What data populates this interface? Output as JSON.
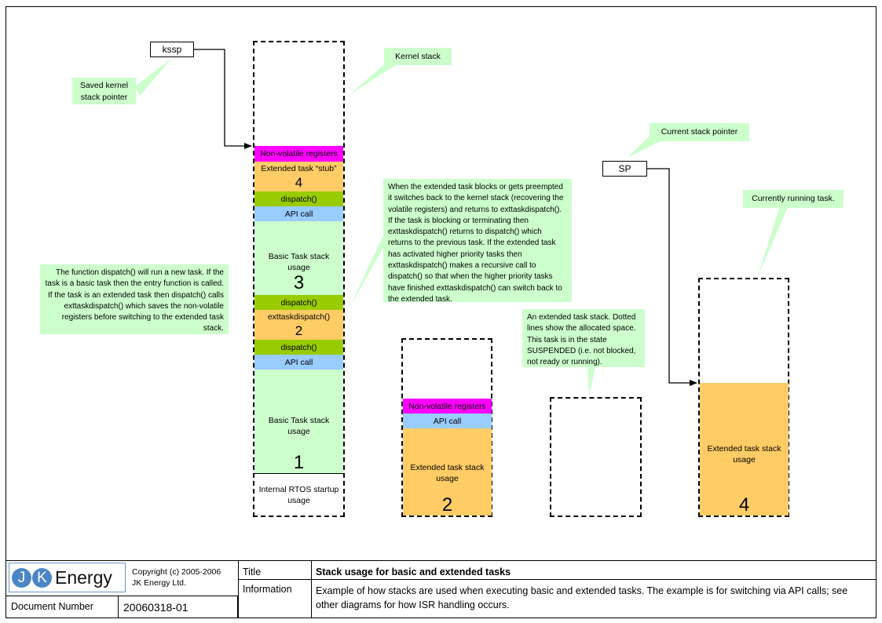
{
  "pointers": {
    "kssp": "kssp",
    "sp": "SP"
  },
  "notes": {
    "saved_kernel_sp": "Saved kernel\nstack pointer",
    "kernel_stack": "Kernel stack",
    "current_sp": "Current stack pointer",
    "currently_running": "Currently running task.",
    "dispatch_note": "The function dispatch() will run a new task. If the task is a basic task then the entry function is called. If the task is an extended task then dispatch() calls exttaskdispatch() which saves the non-volatile registers before switching to the extended task stack.",
    "exttask_note": "When the extended task blocks or gets preempted it switches back to the kernel stack (recovering the volatile registers) and returns to exttaskdispatch(). If the task is blocking or terminating then exttaskdispatch() returns to dispatch() which returns to the previous task. If the extended task has activated higher priority tasks  then exttaskdispatch() makes a recursive call to dispatch() so that when the higher priority tasks have finished exttaskdispatch() can switch back to the extended task.",
    "suspended_note": "An extended task stack. Dotted lines show the allocated space. This task is in the state SUSPENDED (i.e. not blocked, not ready or running)."
  },
  "kernel_stack": {
    "nonvol": "Non-volatile registers",
    "stub_label": "Extended task “stub”",
    "stub_num": "4",
    "dispatch1": "dispatch()",
    "api1": "API call",
    "basic3_label": "Basic Task stack usage",
    "basic3_num": "3",
    "dispatch2": "dispatch()",
    "exttaskdispatch": "exttaskdispatch()",
    "ext_num": "2",
    "dispatch3": "dispatch()",
    "api2": "API call",
    "basic1_label": "Basic Task stack usage",
    "basic1_num": "1",
    "startup": "Internal RTOS startup usage"
  },
  "stack2": {
    "nonvol": "Non-volatile registers",
    "api": "API call",
    "label": "Extended task stack usage",
    "num": "2"
  },
  "stack4": {
    "label": "Extended task stack usage",
    "num": "4"
  },
  "footer": {
    "logo_j": "J",
    "logo_k": "K",
    "logo_text": "Energy",
    "copyright_line1": "Copyright (c) 2005-2006",
    "copyright_line2": "JK Energy Ltd.",
    "docnum_label": "Document Number",
    "docnum_value": "20060318-01",
    "title_label": "Title",
    "title_value": "Stack usage for basic and extended tasks",
    "info_label": "Information",
    "info_value": "Example of how stacks are used when executing basic and extended tasks. The example is for switching via API calls; see other diagrams for how ISR handling occurs."
  },
  "colors": {
    "magenta": "#ff00ff",
    "orange": "#ffcc66",
    "olive": "#99cc00",
    "blue": "#99ccff",
    "green": "#ccffcc"
  }
}
